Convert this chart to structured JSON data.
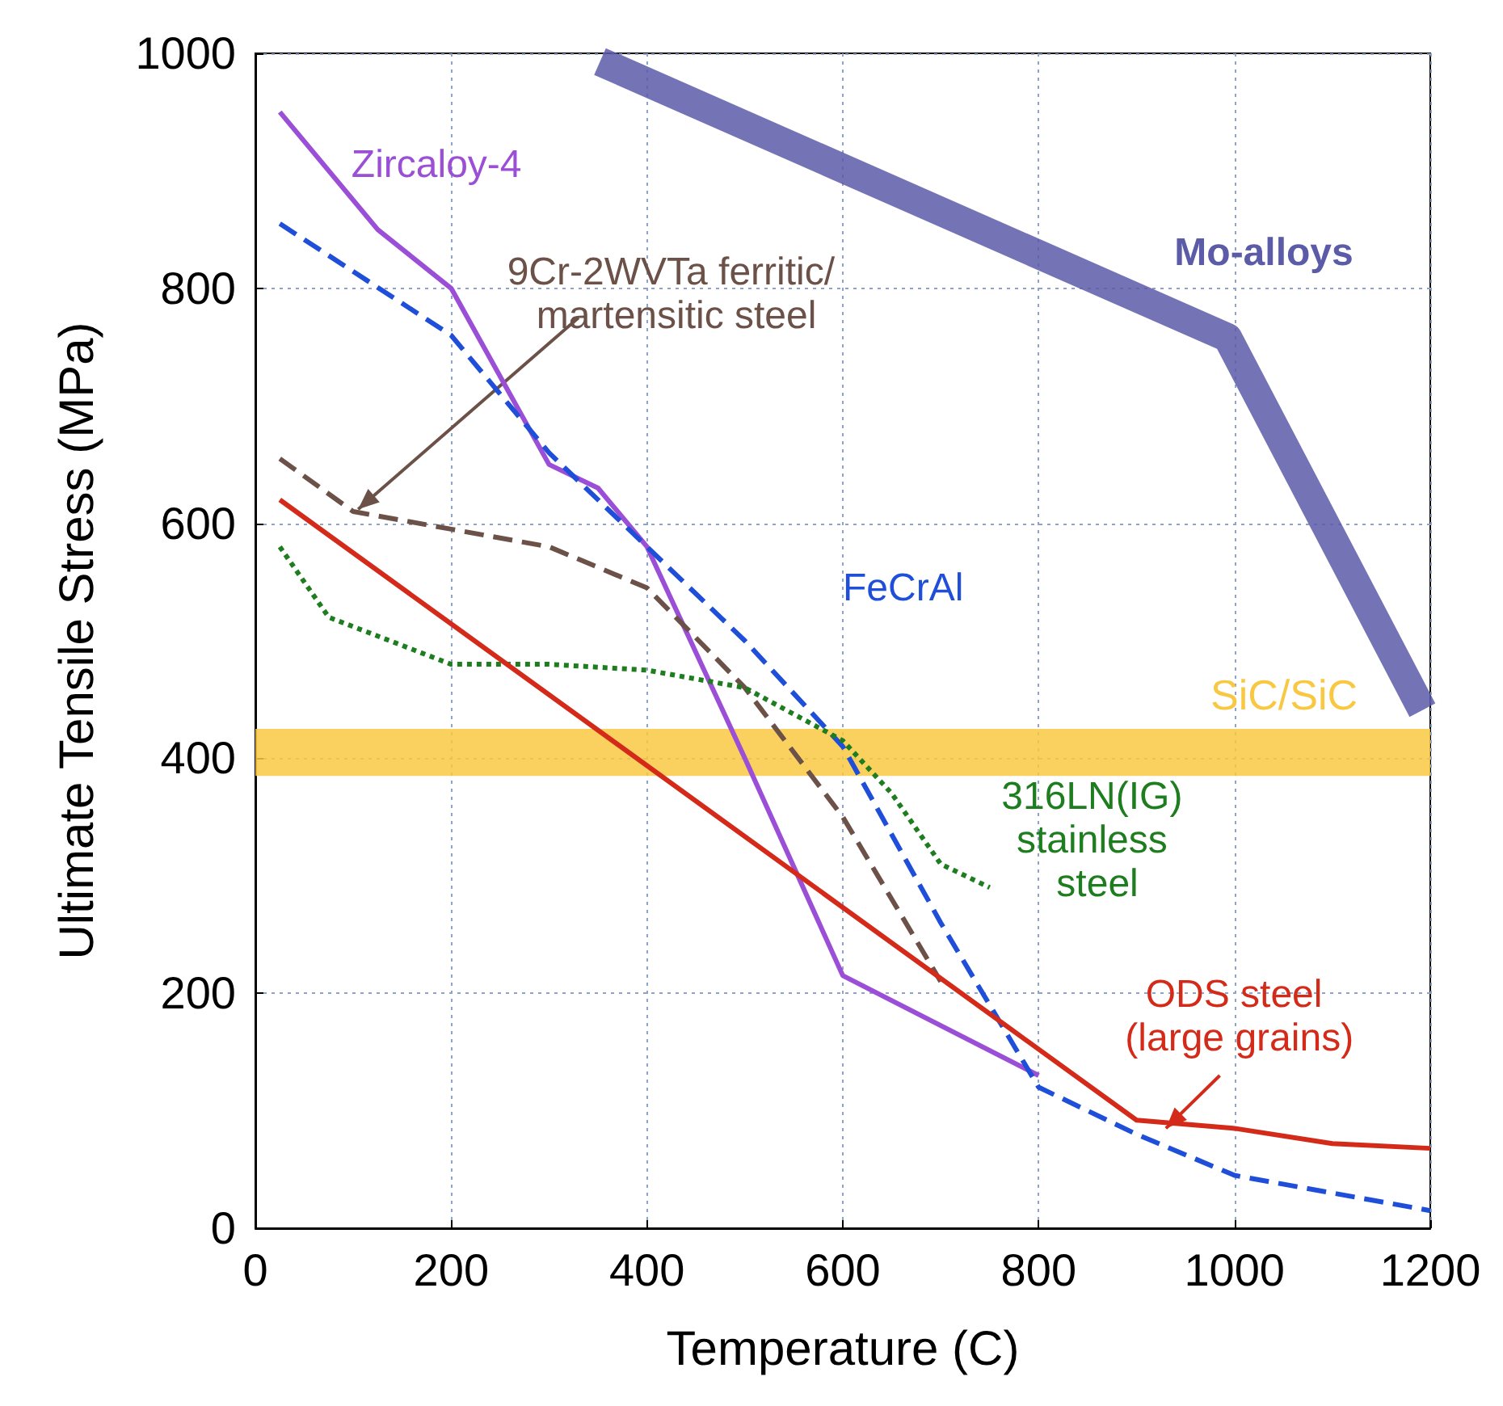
{
  "chart_data": {
    "type": "line",
    "xlabel": "Temperature (C)",
    "ylabel": "Ultimate Tensile Stress (MPa)",
    "xlim": [
      0,
      1200
    ],
    "ylim": [
      0,
      1000
    ],
    "xticks": [
      0,
      200,
      400,
      600,
      800,
      1000,
      1200
    ],
    "yticks": [
      0,
      200,
      400,
      600,
      800,
      1000
    ],
    "grid": true,
    "marker": "none",
    "series": [
      {
        "name": "Zircaloy-4",
        "color": "#9b4fd6",
        "line_style": "solid",
        "x": [
          25,
          125,
          200,
          300,
          350,
          400,
          500,
          600,
          800
        ],
        "values": [
          950,
          850,
          800,
          650,
          630,
          580,
          400,
          215,
          130
        ]
      },
      {
        "name": "FeCrAl",
        "color": "#1f4fd8",
        "line_style": "dashed",
        "x": [
          25,
          200,
          300,
          400,
          500,
          600,
          700,
          800,
          900,
          1000,
          1200
        ],
        "values": [
          855,
          760,
          660,
          580,
          500,
          410,
          260,
          120,
          80,
          45,
          15
        ]
      },
      {
        "name": "9Cr-2WVTa ferritic/ martensitic steel",
        "color": "#6b5148",
        "line_style": "dashed",
        "x": [
          25,
          100,
          200,
          300,
          400,
          500,
          600,
          700
        ],
        "values": [
          655,
          610,
          595,
          580,
          545,
          460,
          350,
          210
        ]
      },
      {
        "name": "316LN(IG) stainless steel",
        "color": "#1e7d1e",
        "line_style": "dotted",
        "x": [
          25,
          75,
          200,
          300,
          400,
          500,
          600,
          650,
          700,
          750
        ],
        "values": [
          580,
          520,
          480,
          480,
          475,
          460,
          415,
          370,
          310,
          290
        ]
      },
      {
        "name": "ODS steel (large grains)",
        "color": "#d42a1a",
        "line_style": "solid",
        "x": [
          25,
          900,
          1000,
          1100,
          1200
        ],
        "values": [
          620,
          92,
          85,
          72,
          68
        ]
      },
      {
        "name": "Mo-alloys",
        "color": "#5b5ba8",
        "line_style": "solid",
        "x": [
          352,
          993,
          1192
        ],
        "values": [
          993,
          758,
          441
        ]
      }
    ],
    "bands": [
      {
        "axis": "y",
        "from": 385,
        "to": 425,
        "label": "SiC/SiC",
        "color": "#f9c842"
      }
    ]
  }
}
